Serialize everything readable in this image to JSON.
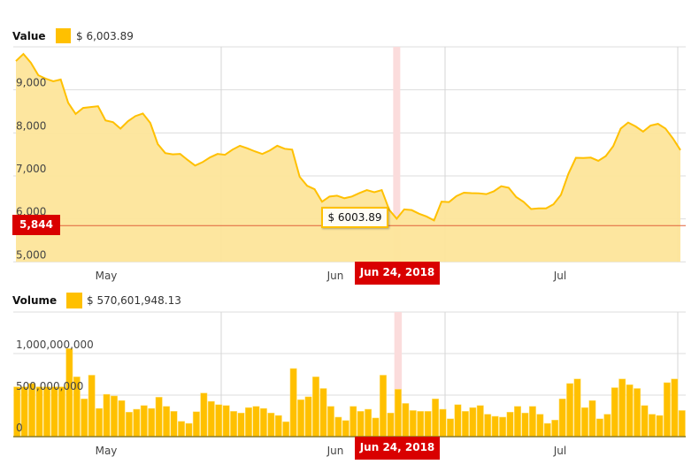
{
  "colors": {
    "line": "#FFC000",
    "area": "#FDE59A",
    "bar": "#FFC000",
    "highlight": "#d90000",
    "crosshair_band": "#fbdcdc"
  },
  "chart_data": [
    {
      "type": "area",
      "legend": {
        "title": "Value",
        "value": "$ 6,003.89"
      },
      "y_ticks": [
        "5,000",
        "6,000",
        "7,000",
        "8,000",
        "9,000"
      ],
      "ylim": [
        5000,
        10000
      ],
      "x_ticks": [
        "May",
        "Jun",
        "Jul"
      ],
      "grid": true,
      "highlight": {
        "label": "Jun 24, 2018",
        "index": 51,
        "tooltip": "$ 6003.89"
      },
      "price_marker": {
        "label": "5,844",
        "value": 5844
      },
      "values": [
        9670,
        9835,
        9630,
        9340,
        9260,
        9200,
        9240,
        8700,
        8440,
        8580,
        8600,
        8620,
        8290,
        8250,
        8100,
        8270,
        8390,
        8450,
        8230,
        7740,
        7530,
        7500,
        7510,
        7370,
        7240,
        7320,
        7430,
        7510,
        7490,
        7610,
        7700,
        7640,
        7570,
        7510,
        7590,
        7700,
        7630,
        7610,
        6980,
        6770,
        6690,
        6400,
        6520,
        6540,
        6480,
        6520,
        6600,
        6670,
        6620,
        6670,
        6210,
        6003.89,
        6220,
        6205,
        6120,
        6055,
        5965,
        6400,
        6390,
        6530,
        6610,
        6600,
        6595,
        6575,
        6640,
        6760,
        6725,
        6510,
        6395,
        6230,
        6245,
        6245,
        6340,
        6560,
        7050,
        7420,
        7415,
        7425,
        7350,
        7460,
        7690,
        8100,
        8240,
        8150,
        8030,
        8170,
        8210,
        8100,
        7870,
        7600
      ]
    },
    {
      "type": "bar",
      "legend": {
        "title": "Volume",
        "value": "$ 570,601,948.13"
      },
      "y_ticks": [
        "0",
        "500,000,000",
        "1,000,000,000"
      ],
      "ylim": [
        0,
        1500000000
      ],
      "x_ticks": [
        "May",
        "Jun",
        "Jul"
      ],
      "grid": true,
      "highlight": {
        "label": "Jun 24, 2018",
        "index": 51
      },
      "values": [
        600,
        600,
        640,
        600,
        600,
        600,
        600,
        1060,
        720,
        455,
        740,
        340,
        510,
        490,
        435,
        295,
        330,
        375,
        340,
        475,
        365,
        305,
        185,
        160,
        300,
        525,
        425,
        385,
        375,
        305,
        285,
        350,
        365,
        340,
        285,
        255,
        180,
        820,
        445,
        480,
        720,
        580,
        365,
        235,
        195,
        365,
        305,
        330,
        225,
        740,
        285,
        570.6,
        400,
        315,
        305,
        305,
        455,
        330,
        215,
        385,
        305,
        350,
        375,
        270,
        245,
        235,
        295,
        365,
        285,
        365,
        270,
        160,
        200,
        455,
        640,
        695,
        350,
        435,
        215,
        270,
        590,
        695,
        625,
        580,
        375,
        270,
        255,
        650,
        695,
        315
      ]
    }
  ]
}
